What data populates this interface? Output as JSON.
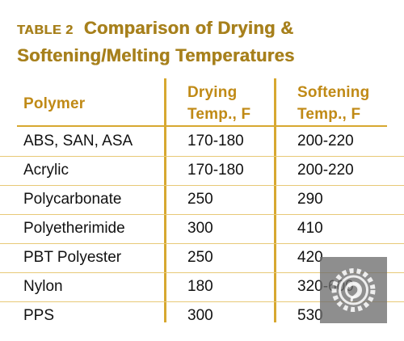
{
  "title": {
    "tag": "TABLE 2",
    "line1": "Comparison of Drying &",
    "line2": "Softening/Melting Temperatures"
  },
  "headers": {
    "polymer": "Polymer",
    "drying_line1": "Drying",
    "drying_line2": "Temp., F",
    "softening_line1": "Softening",
    "softening_line2": "Temp., F"
  },
  "rows": [
    {
      "polymer": "ABS, SAN, ASA",
      "drying": "170-180",
      "softening": "200-220"
    },
    {
      "polymer": "Acrylic",
      "drying": "170-180",
      "softening": "200-220"
    },
    {
      "polymer": "Polycarbonate",
      "drying": "250",
      "softening": "290"
    },
    {
      "polymer": "Polyetherimide",
      "drying": "300",
      "softening": "410"
    },
    {
      "polymer": "PBT Polyester",
      "drying": "250",
      "softening": "420"
    },
    {
      "polymer": "Nylon",
      "drying": "180",
      "softening": "320-600"
    },
    {
      "polymer": "PPS",
      "drying": "300",
      "softening": "530"
    }
  ],
  "colors": {
    "accent": "#a7801c",
    "header": "#c08a16",
    "rule": "#d7a830"
  },
  "watermark": {
    "icon": "gear-logo-icon"
  }
}
